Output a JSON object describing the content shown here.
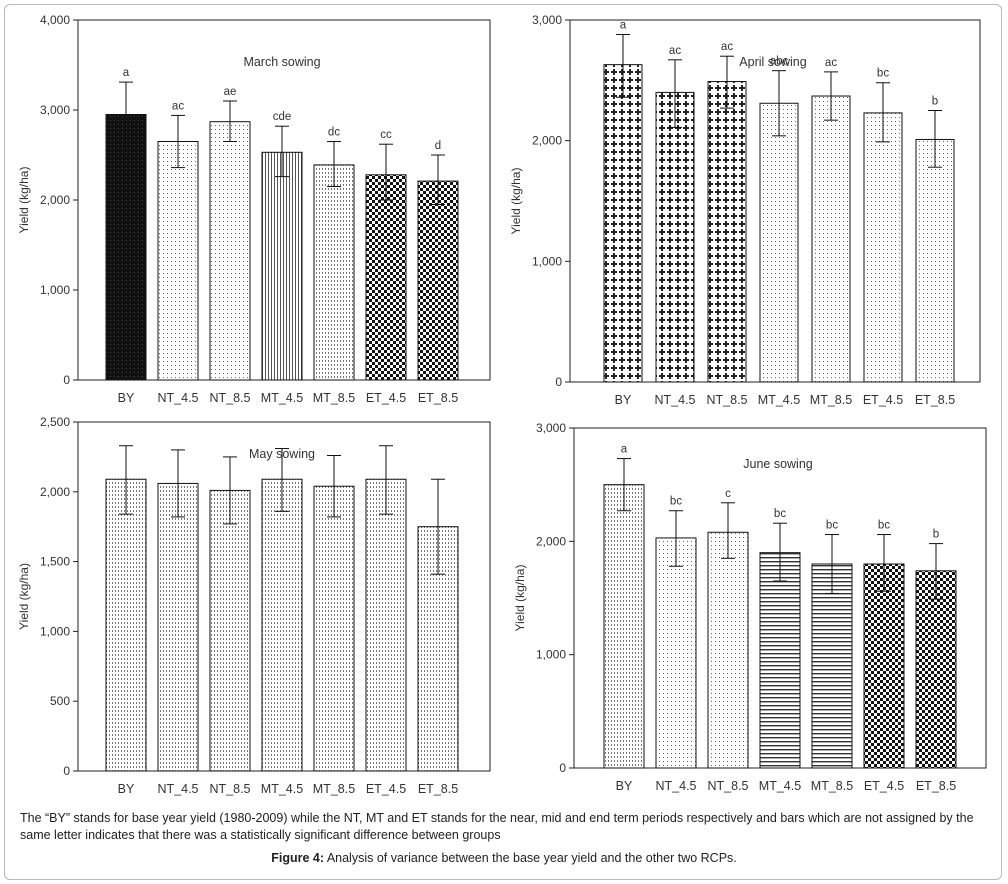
{
  "note": "The “BY” stands for base year yield (1980-2009) while the NT, MT and ET stands for the near, mid and end term periods respectively and bars which are not assigned by the same letter indicates that there was a statistically significant difference between groups",
  "caption": {
    "label": "Figure 4:",
    "text": " Analysis of variance between the base year yield and the other two RCPs."
  },
  "chart_data": [
    {
      "type": "bar",
      "title": "March sowing",
      "ylabel": "Yield (kg/ha)",
      "ylim": [
        0,
        4000
      ],
      "yticks": [
        "0",
        "1,000",
        "2,000",
        "3,000",
        "4,000"
      ],
      "categories": [
        "BY",
        "NT_4.5",
        "NT_8.5",
        "MT_4.5",
        "MT_8.5",
        "ET_4.5",
        "ET_8.5"
      ],
      "values": [
        2950,
        2650,
        2870,
        2530,
        2390,
        2280,
        2210
      ],
      "err_low": [
        2600,
        2360,
        2650,
        2260,
        2150,
        2000,
        1950
      ],
      "err_high": [
        3310,
        2940,
        3100,
        2820,
        2650,
        2620,
        2500
      ],
      "letters": [
        "a",
        "ac",
        "ae",
        "cde",
        "dc",
        "cc",
        "d"
      ],
      "patterns": [
        "solid",
        "dots",
        "dots",
        "vlines",
        "vdots",
        "checker",
        "checker"
      ]
    },
    {
      "type": "bar",
      "title": "April sowing",
      "ylabel": "Yield (kg/ha)",
      "ylim": [
        0,
        3000
      ],
      "yticks": [
        "0",
        "1,000",
        "2,000",
        "3,000"
      ],
      "categories": [
        "BY",
        "NT_4.5",
        "NT_8.5",
        "MT_4.5",
        "MT_8.5",
        "ET_4.5",
        "ET_8.5"
      ],
      "values": [
        2630,
        2400,
        2490,
        2310,
        2370,
        2230,
        2010
      ],
      "err_low": [
        2360,
        2110,
        2270,
        2040,
        2170,
        1990,
        1780
      ],
      "err_high": [
        2880,
        2670,
        2700,
        2580,
        2570,
        2480,
        2250
      ],
      "letters": [
        "a",
        "ac",
        "ac",
        "abc",
        "ac",
        "bc",
        "b"
      ],
      "patterns": [
        "cross",
        "cross",
        "cross",
        "dots",
        "dots",
        "dots",
        "dots"
      ]
    },
    {
      "type": "bar",
      "title": "May sowing",
      "ylabel": "Yield (kg/ha)",
      "ylim": [
        0,
        2500
      ],
      "yticks": [
        "0",
        "500",
        "1,000",
        "1,500",
        "2,000",
        "2,500"
      ],
      "categories": [
        "BY",
        "NT_4.5",
        "NT_8.5",
        "MT_4.5",
        "MT_8.5",
        "ET_4.5",
        "ET_8.5"
      ],
      "values": [
        2090,
        2060,
        2010,
        2090,
        2040,
        2090,
        1750
      ],
      "err_low": [
        1840,
        1820,
        1770,
        1860,
        1820,
        1840,
        1410
      ],
      "err_high": [
        2330,
        2300,
        2250,
        2310,
        2260,
        2330,
        2090
      ],
      "letters": [],
      "patterns": [
        "vdots",
        "vdots",
        "vdots",
        "vdots",
        "vdots",
        "vdots",
        "vdots"
      ]
    },
    {
      "type": "bar",
      "title": "June sowing",
      "ylabel": "Yield (kg/ha)",
      "ylim": [
        0,
        3000
      ],
      "yticks": [
        "0",
        "1,000",
        "2,000",
        "3,000"
      ],
      "categories": [
        "BY",
        "NT_4.5",
        "NT_8.5",
        "MT_4.5",
        "MT_8.5",
        "ET_4.5",
        "ET_8.5"
      ],
      "values": [
        2500,
        2030,
        2080,
        1900,
        1800,
        1800,
        1740
      ],
      "err_low": [
        2270,
        1780,
        1850,
        1650,
        1540,
        1560,
        1490
      ],
      "err_high": [
        2730,
        2270,
        2340,
        2160,
        2060,
        2060,
        1980
      ],
      "letters": [
        "a",
        "bc",
        "c",
        "bc",
        "bc",
        "bc",
        "b"
      ],
      "patterns": [
        "vdots",
        "dots",
        "dots",
        "hlines",
        "hlines",
        "checker",
        "checker"
      ]
    }
  ]
}
